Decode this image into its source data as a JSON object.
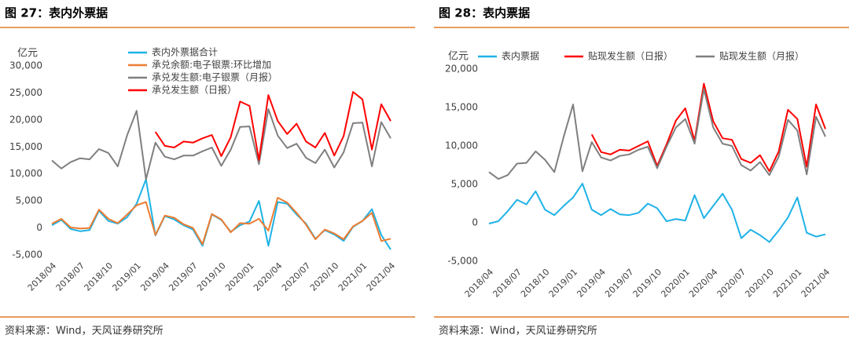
{
  "chart_data": [
    {
      "type": "line",
      "title": "图 27：表内外票据",
      "y_label": "亿元",
      "source": "资料来源：Wind，天风证券研究所",
      "grid": false,
      "legend": "top",
      "categories": [
        "2018/04",
        null,
        null,
        "2018/07",
        null,
        null,
        "2018/10",
        null,
        null,
        "2019/01",
        null,
        null,
        "2019/04",
        null,
        null,
        "2019/07",
        null,
        null,
        "2019/10",
        null,
        null,
        "2020/01",
        null,
        null,
        "2020/04",
        null,
        null,
        "2020/07",
        null,
        null,
        "2020/10",
        null,
        null,
        "2021/01",
        null,
        null,
        "2021/04"
      ],
      "ylim": [
        -5000,
        30000
      ],
      "yticks": [
        {
          "value": -5000,
          "label": "-5,000"
        },
        0,
        {
          "value": 5000,
          "label": "5,000"
        },
        {
          "value": 10000,
          "label": "10,000"
        },
        {
          "value": 15000,
          "label": "15,000"
        },
        {
          "value": 20000,
          "label": "20,000"
        },
        {
          "value": 25000,
          "label": "25,000"
        },
        {
          "value": 30000,
          "label": "30,000"
        }
      ],
      "series": [
        {
          "name": "表内外票据合计",
          "color": "#1fb2e6",
          "values": [
            500,
            1500,
            -200,
            -600,
            -400,
            3200,
            1300,
            800,
            2000,
            4500,
            9000,
            -1400,
            2200,
            1600,
            500,
            -300,
            -3300,
            2500,
            1500,
            -700,
            500,
            1200,
            5000,
            -3300,
            4800,
            4500,
            2500,
            800,
            -2000,
            -400,
            -1200,
            -2400,
            200,
            1300,
            3500,
            -1300,
            -4000
          ]
        },
        {
          "name": "承兑余额:电子银票:环比增加",
          "color": "#ed7d31",
          "values": [
            800,
            1700,
            100,
            -100,
            0,
            3400,
            1700,
            900,
            2500,
            4200,
            4800,
            -1300,
            2300,
            1900,
            700,
            0,
            -3000,
            2600,
            1600,
            -800,
            900,
            800,
            1700,
            -500,
            5600,
            4700,
            2800,
            600,
            -2100,
            -300,
            -1000,
            -2100,
            300,
            1300,
            2800,
            -2400,
            -2000
          ]
        },
        {
          "name": "承兑发生额:电子银票（月报）",
          "color": "#7f7f7f",
          "values": [
            12500,
            11000,
            12200,
            12900,
            12700,
            14600,
            13900,
            11400,
            17200,
            21700,
            9000,
            15800,
            13200,
            12700,
            13400,
            13400,
            14200,
            14900,
            11500,
            14500,
            18700,
            18800,
            11800,
            22000,
            17100,
            14800,
            15600,
            13000,
            12000,
            14500,
            11200,
            14000,
            19400,
            19500,
            11400,
            19600,
            16600
          ]
        },
        {
          "name": "承兑发生额（日报）",
          "color": "#ff0000",
          "values": [
            null,
            null,
            null,
            null,
            null,
            null,
            null,
            null,
            null,
            null,
            null,
            17800,
            15200,
            14900,
            16000,
            15800,
            16600,
            17200,
            13300,
            16800,
            23400,
            22600,
            12600,
            24600,
            19800,
            17400,
            19300,
            16000,
            14900,
            17600,
            13400,
            17000,
            25200,
            23800,
            14500,
            22900,
            19800
          ]
        }
      ]
    },
    {
      "type": "line",
      "title": "图 28：表内票据",
      "y_label": "亿元",
      "source": "资料来源：Wind，天风证券研究所",
      "grid": false,
      "legend": "top",
      "categories": [
        "2018/04",
        null,
        null,
        "2018/07",
        null,
        null,
        "2018/10",
        null,
        null,
        "2019/01",
        null,
        null,
        "2019/04",
        null,
        null,
        "2019/07",
        null,
        null,
        "2019/10",
        null,
        null,
        "2020/01",
        null,
        null,
        "2020/04",
        null,
        null,
        "2020/07",
        null,
        null,
        "2020/10",
        null,
        null,
        "2021/01",
        null,
        null,
        "2021/04"
      ],
      "ylim": [
        -5000,
        20000
      ],
      "yticks": [
        {
          "value": -5000,
          "label": "-5,000"
        },
        0,
        {
          "value": 5000,
          "label": "5,000"
        },
        {
          "value": 10000,
          "label": "10,000"
        },
        {
          "value": 15000,
          "label": "15,000"
        },
        {
          "value": 20000,
          "label": "20,000"
        }
      ],
      "series": [
        {
          "name": "表内票据",
          "color": "#1fb2e6",
          "values": [
            -100,
            200,
            1500,
            3000,
            2400,
            4100,
            1700,
            1000,
            2200,
            3300,
            5100,
            1700,
            1000,
            1800,
            1100,
            1000,
            1300,
            2500,
            1900,
            200,
            500,
            300,
            3600,
            600,
            2200,
            3800,
            1700,
            -2000,
            -900,
            -1600,
            -2500,
            -1000,
            700,
            3300,
            -1300,
            -1800,
            -1500
          ]
        },
        {
          "name": "贴现发生额（日报）",
          "color": "#ff0000",
          "values": [
            null,
            null,
            null,
            null,
            null,
            null,
            null,
            null,
            null,
            null,
            null,
            11500,
            9200,
            8900,
            9500,
            9400,
            10000,
            10600,
            7400,
            10200,
            13300,
            14900,
            10700,
            18100,
            13200,
            11000,
            10800,
            8300,
            7800,
            8800,
            6700,
            9300,
            14700,
            13500,
            7300,
            15400,
            12200
          ]
        },
        {
          "name": "贴现发生额（月报）",
          "color": "#7f7f7f",
          "values": [
            6600,
            5700,
            6200,
            7700,
            7800,
            9300,
            8200,
            6600,
            11200,
            15400,
            6700,
            10500,
            8500,
            8100,
            8700,
            8900,
            9500,
            9900,
            7100,
            9900,
            12400,
            13500,
            10300,
            17400,
            12400,
            10300,
            10000,
            7500,
            6800,
            7900,
            6200,
            8600,
            13400,
            12000,
            6300,
            13800,
            11200
          ]
        }
      ]
    }
  ]
}
